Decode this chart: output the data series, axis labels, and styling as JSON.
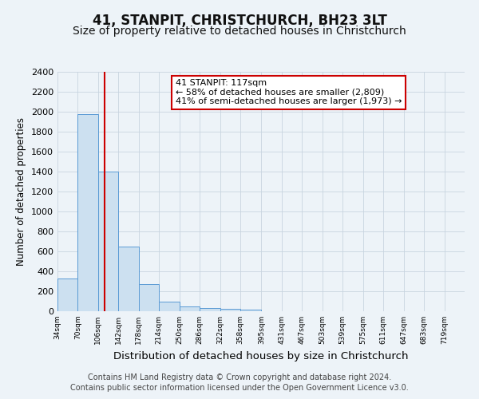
{
  "title": "41, STANPIT, CHRISTCHURCH, BH23 3LT",
  "subtitle": "Size of property relative to detached houses in Christchurch",
  "xlabel": "Distribution of detached houses by size in Christchurch",
  "ylabel": "Number of detached properties",
  "bin_edges": [
    34,
    70,
    106,
    142,
    178,
    214,
    250,
    286,
    322,
    358,
    395,
    431,
    467,
    503,
    539,
    575,
    611,
    647,
    683,
    719,
    755
  ],
  "bar_values": [
    325,
    1975,
    1400,
    650,
    275,
    100,
    50,
    30,
    25,
    20,
    0,
    0,
    0,
    0,
    0,
    0,
    0,
    0,
    0,
    0
  ],
  "bar_face_color": "#cce0f0",
  "bar_edge_color": "#5b9bd5",
  "vline_x": 117,
  "vline_color": "#cc0000",
  "annotation_line1": "41 STANPIT: 117sqm",
  "annotation_line2": "← 58% of detached houses are smaller (2,809)",
  "annotation_line3": "41% of semi-detached houses are larger (1,973) →",
  "annotation_box_color": "#ffffff",
  "annotation_box_edge": "#cc0000",
  "ylim": [
    0,
    2400
  ],
  "ytick_step": 200,
  "background_color": "#edf3f8",
  "plot_bg_color": "#edf3f8",
  "footer_line1": "Contains HM Land Registry data © Crown copyright and database right 2024.",
  "footer_line2": "Contains public sector information licensed under the Open Government Licence v3.0.",
  "title_fontsize": 12,
  "subtitle_fontsize": 10,
  "xlabel_fontsize": 9.5,
  "ylabel_fontsize": 8.5,
  "footer_fontsize": 7,
  "annot_fontsize": 8,
  "tick_fontsize": 6.5
}
